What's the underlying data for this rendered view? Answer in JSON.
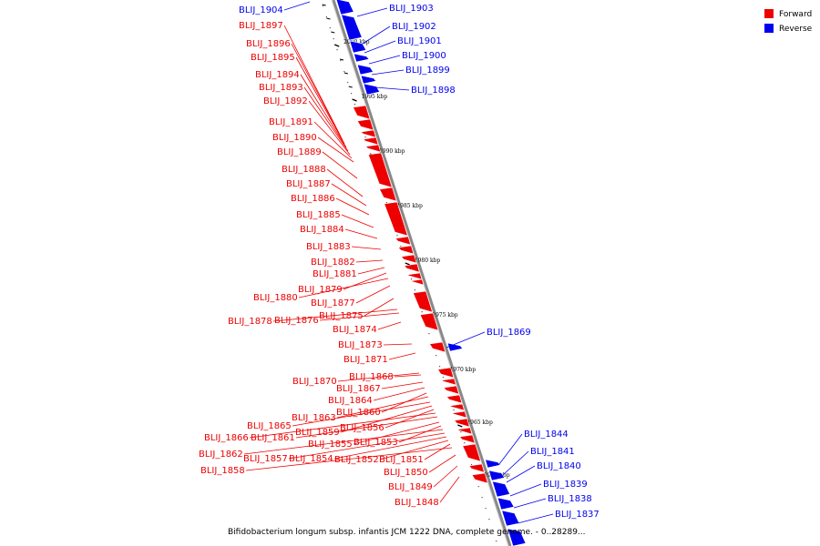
{
  "colors": {
    "forward": "#ee0000",
    "reverse": "#0000ee",
    "axis": "#888888",
    "tick": "#000000"
  },
  "legend": {
    "forward_label": "Forward",
    "reverse_label": "Reverse"
  },
  "caption": "Bifidobacterium longum subsp. infantis JCM 1222 DNA, complete genome. - 0..28289...",
  "ruler_labels": [
    "2000 kbp",
    "1995 kbp",
    "1990 kbp",
    "1985 kbp",
    "1980 kbp",
    "1975 kbp",
    "1970 kbp",
    "1965 kbp",
    "1960 kbp"
  ],
  "forward_genes": [
    "BLIJ_1897",
    "BLIJ_1896",
    "BLIJ_1895",
    "BLIJ_1894",
    "BLIJ_1893",
    "BLIJ_1892",
    "BLIJ_1891",
    "BLIJ_1890",
    "BLIJ_1889",
    "BLIJ_1888",
    "BLIJ_1887",
    "BLIJ_1886",
    "BLIJ_1885",
    "BLIJ_1884",
    "BLIJ_1883",
    "BLIJ_1882",
    "BLIJ_1881",
    "BLIJ_1879",
    "BLIJ_1880",
    "BLIJ_1877",
    "BLIJ_1875",
    "BLIJ_1878",
    "BLIJ_1876",
    "BLIJ_1874",
    "BLIJ_1873",
    "BLIJ_1871",
    "BLIJ_1870",
    "BLIJ_1868",
    "BLIJ_1867",
    "BLIJ_1864",
    "BLIJ_1860",
    "BLIJ_1863",
    "BLIJ_1865",
    "BLIJ_1859",
    "BLIJ_1856",
    "BLIJ_1866",
    "BLIJ_1861",
    "BLIJ_1855",
    "BLIJ_1853",
    "BLIJ_1862",
    "BLIJ_1857",
    "BLIJ_1854",
    "BLIJ_1852",
    "BLIJ_1851",
    "BLIJ_1858",
    "BLIJ_1850",
    "BLIJ_1849",
    "BLIJ_1848"
  ],
  "reverse_genes": [
    "BLIJ_1904",
    "BLIJ_1903",
    "BLIJ_1902",
    "BLIJ_1901",
    "BLIJ_1900",
    "BLIJ_1899",
    "BLIJ_1898",
    "BLIJ_1869",
    "BLIJ_1844",
    "BLIJ_1841",
    "BLIJ_1840",
    "BLIJ_1839",
    "BLIJ_1838",
    "BLIJ_1837"
  ]
}
